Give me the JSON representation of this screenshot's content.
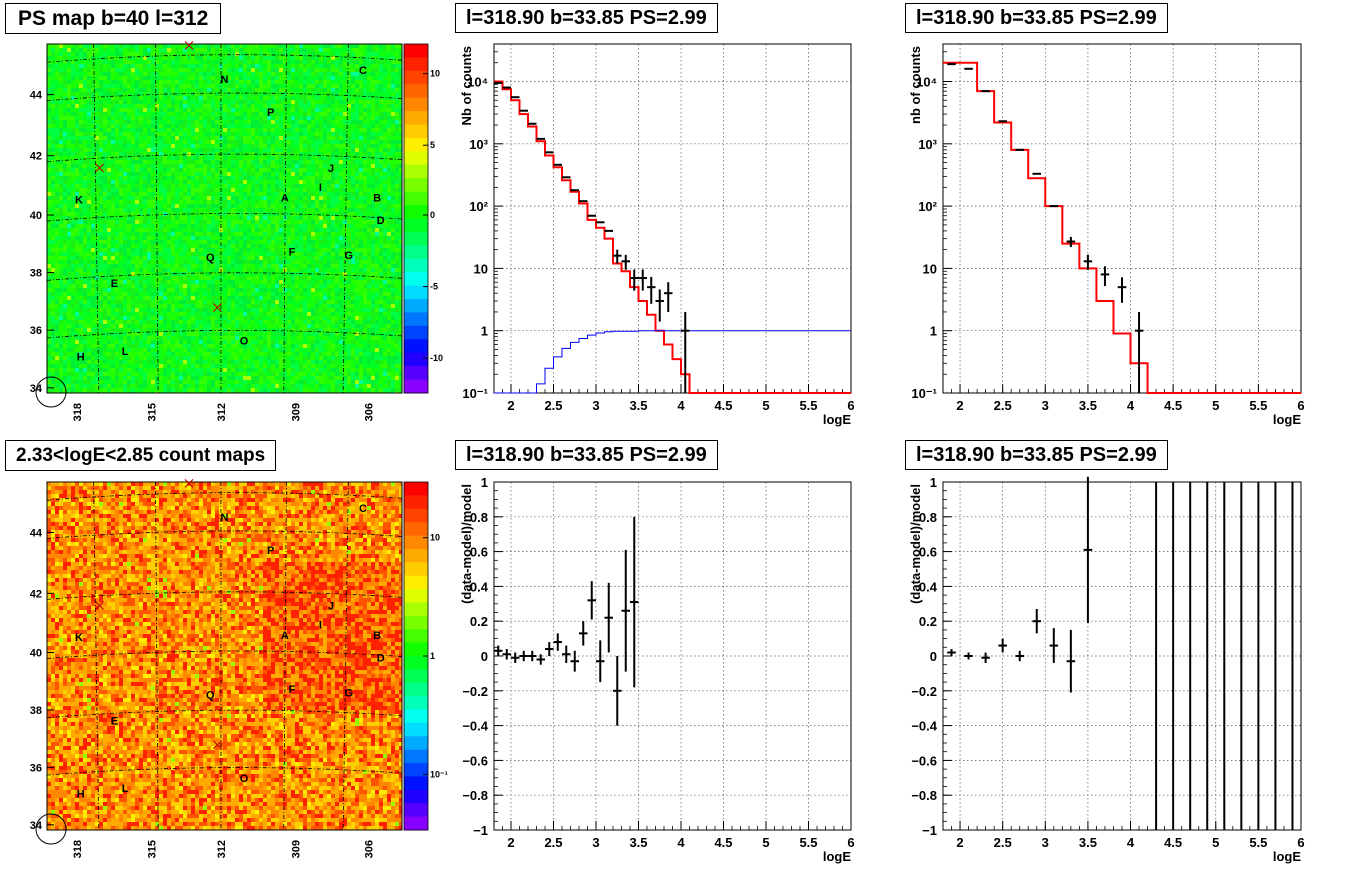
{
  "map_panel": {
    "title": "PS map b=40 l=312",
    "lon_ticks": [
      "318",
      "315",
      "312",
      "309",
      "306"
    ],
    "lat_ticks": [
      "34",
      "36",
      "38",
      "40",
      "42",
      "44"
    ],
    "colorbar_ticks": [
      "10",
      "5",
      "0",
      "-5",
      "-10"
    ],
    "source_labels": [
      "N",
      "C",
      "P",
      "J",
      "I",
      "A",
      "B",
      "D",
      "K",
      "F",
      "G",
      "Q",
      "E",
      "O",
      "L",
      "H"
    ]
  },
  "count_map_panel": {
    "title": "2.33<logE<2.85 count maps",
    "lon_ticks": [
      "318",
      "315",
      "312",
      "309",
      "306"
    ],
    "lat_ticks": [
      "34",
      "36",
      "38",
      "40",
      "42",
      "44"
    ],
    "colorbar_ticks": [
      "10",
      "1",
      "10⁻¹"
    ]
  },
  "chart_data": [
    {
      "type": "line",
      "title": "l=318.90 b=33.85 PS=2.99",
      "xlabel": "logE",
      "ylabel": "Nb of counts",
      "xlim": [
        1.8,
        6
      ],
      "ylim": [
        0.1,
        40000
      ],
      "log_y": true,
      "grid": true,
      "x_ticks": [
        "2",
        "2.5",
        "3",
        "3.5",
        "4",
        "4.5",
        "5",
        "5.5",
        "6"
      ],
      "y_ticks": [
        "10⁻¹",
        "1",
        "10",
        "10²",
        "10³",
        "10⁴"
      ],
      "data": {
        "x": [
          1.85,
          1.95,
          2.05,
          2.15,
          2.25,
          2.35,
          2.45,
          2.55,
          2.65,
          2.75,
          2.85,
          2.95,
          3.05,
          3.15,
          3.25,
          3.35,
          3.45,
          3.55,
          3.65,
          3.75,
          3.85,
          4.05
        ],
        "y": [
          9500,
          8000,
          5600,
          3400,
          2100,
          1200,
          730,
          460,
          290,
          180,
          120,
          70,
          55,
          40,
          16,
          13,
          7,
          7,
          5,
          3,
          4,
          1
        ],
        "err": [
          0,
          0,
          0,
          0,
          0,
          0,
          0,
          0,
          0,
          0,
          0,
          0,
          0,
          0,
          4,
          3.5,
          2.6,
          2.6,
          2.3,
          1.6,
          2,
          1
        ]
      },
      "series": [
        {
          "name": "",
          "x": [
            1.8,
            1.9,
            2.0,
            2.1,
            2.2,
            2.3,
            2.4,
            2.5,
            2.6,
            2.7,
            2.8,
            2.9,
            3.0,
            3.1,
            3.2,
            3.3,
            3.4,
            3.5,
            3.6,
            3.7,
            3.8,
            3.9,
            4.0,
            4.1,
            4.2,
            6.0
          ],
          "y": [
            10000,
            7500,
            5000,
            3000,
            1900,
            1100,
            650,
            420,
            260,
            170,
            110,
            60,
            45,
            30,
            12,
            9,
            5,
            3,
            1.8,
            1,
            0.6,
            0.35,
            0.2,
            0.1,
            0.1,
            0.1
          ],
          "color": "#ff0000"
        },
        {
          "name": "",
          "x": [
            1.8,
            2.2,
            2.3,
            2.4,
            2.5,
            2.6,
            2.7,
            2.8,
            2.9,
            3.0,
            3.1,
            3.2,
            3.5,
            6.0
          ],
          "y": [
            0.1,
            0.1,
            0.14,
            0.25,
            0.38,
            0.52,
            0.65,
            0.75,
            0.85,
            0.92,
            0.96,
            0.98,
            1.0,
            1.0
          ],
          "color": "#0000ff"
        }
      ]
    },
    {
      "type": "line",
      "title": "l=318.90 b=33.85 PS=2.99",
      "xlabel": "logE",
      "ylabel": "nb of counts",
      "xlim": [
        1.8,
        6
      ],
      "ylim": [
        0.1,
        40000
      ],
      "log_y": true,
      "grid": true,
      "x_ticks": [
        "2",
        "2.5",
        "3",
        "3.5",
        "4",
        "4.5",
        "5",
        "5.5",
        "6"
      ],
      "y_ticks": [
        "10⁻¹",
        "1",
        "10",
        "10²",
        "10³",
        "10⁴"
      ],
      "data": {
        "x": [
          1.9,
          2.1,
          2.3,
          2.5,
          2.7,
          2.9,
          3.1,
          3.3,
          3.5,
          3.7,
          3.9,
          4.1
        ],
        "y": [
          19000,
          16000,
          7000,
          2300,
          800,
          330,
          100,
          27,
          13,
          8,
          5,
          1
        ],
        "err": [
          0,
          0,
          0,
          0,
          0,
          0,
          0,
          5,
          3.6,
          2.8,
          2.2,
          1
        ]
      },
      "series": [
        {
          "name": "",
          "x": [
            1.8,
            2.0,
            2.2,
            2.4,
            2.6,
            2.8,
            3.0,
            3.2,
            3.4,
            3.6,
            3.8,
            4.0,
            4.2,
            6.0
          ],
          "y": [
            20000,
            20000,
            7000,
            2200,
            800,
            280,
            100,
            25,
            10,
            3,
            0.9,
            0.3,
            0.1,
            0.1
          ],
          "color": "#ff0000"
        }
      ]
    },
    {
      "type": "scatter",
      "title": "l=318.90 b=33.85 PS=2.99",
      "xlabel": "logE",
      "ylabel": "(data-model)/model",
      "xlim": [
        1.8,
        6
      ],
      "ylim": [
        -1,
        1
      ],
      "grid": true,
      "x_ticks": [
        "2",
        "2.5",
        "3",
        "3.5",
        "4",
        "4.5",
        "5",
        "5.5",
        "6"
      ],
      "y_ticks": [
        "1",
        "0.8",
        "0.6",
        "0.4",
        "0.2",
        "0",
        "−0.2",
        "−0.4",
        "−0.6",
        "−0.8",
        "−1"
      ],
      "data": {
        "x": [
          1.85,
          1.95,
          2.05,
          2.15,
          2.25,
          2.35,
          2.45,
          2.55,
          2.65,
          2.75,
          2.85,
          2.95,
          3.05,
          3.15,
          3.25,
          3.35,
          3.45
        ],
        "y": [
          0.03,
          0.01,
          -0.01,
          0.0,
          0.0,
          -0.02,
          0.04,
          0.08,
          0.01,
          -0.03,
          0.13,
          0.32,
          -0.03,
          0.22,
          -0.2,
          0.26,
          0.31
        ],
        "err": [
          0.03,
          0.03,
          0.03,
          0.03,
          0.03,
          0.03,
          0.04,
          0.05,
          0.05,
          0.06,
          0.07,
          0.11,
          0.12,
          0.2,
          0.2,
          0.35,
          0.49
        ]
      }
    },
    {
      "type": "scatter",
      "title": "l=318.90 b=33.85 PS=2.99",
      "xlabel": "logE",
      "ylabel": "(data-model)/model",
      "xlim": [
        1.8,
        6
      ],
      "ylim": [
        -1,
        1
      ],
      "grid": true,
      "x_ticks": [
        "2",
        "2.5",
        "3",
        "3.5",
        "4",
        "4.5",
        "5",
        "5.5",
        "6"
      ],
      "y_ticks": [
        "1",
        "0.8",
        "0.6",
        "0.4",
        "0.2",
        "0",
        "−0.2",
        "−0.4",
        "−0.6",
        "−0.8",
        "−1"
      ],
      "data": {
        "x": [
          1.9,
          2.1,
          2.3,
          2.5,
          2.7,
          2.9,
          3.1,
          3.3,
          3.5
        ],
        "y": [
          0.02,
          0.0,
          -0.01,
          0.06,
          0.0,
          0.2,
          0.06,
          -0.03,
          0.61
        ],
        "err": [
          0.02,
          0.02,
          0.03,
          0.04,
          0.03,
          0.07,
          0.1,
          0.18,
          0.42
        ]
      },
      "full_range_bins_x": [
        4.3,
        4.5,
        4.7,
        4.9,
        5.1,
        5.3,
        5.5,
        5.7,
        5.9
      ]
    }
  ]
}
